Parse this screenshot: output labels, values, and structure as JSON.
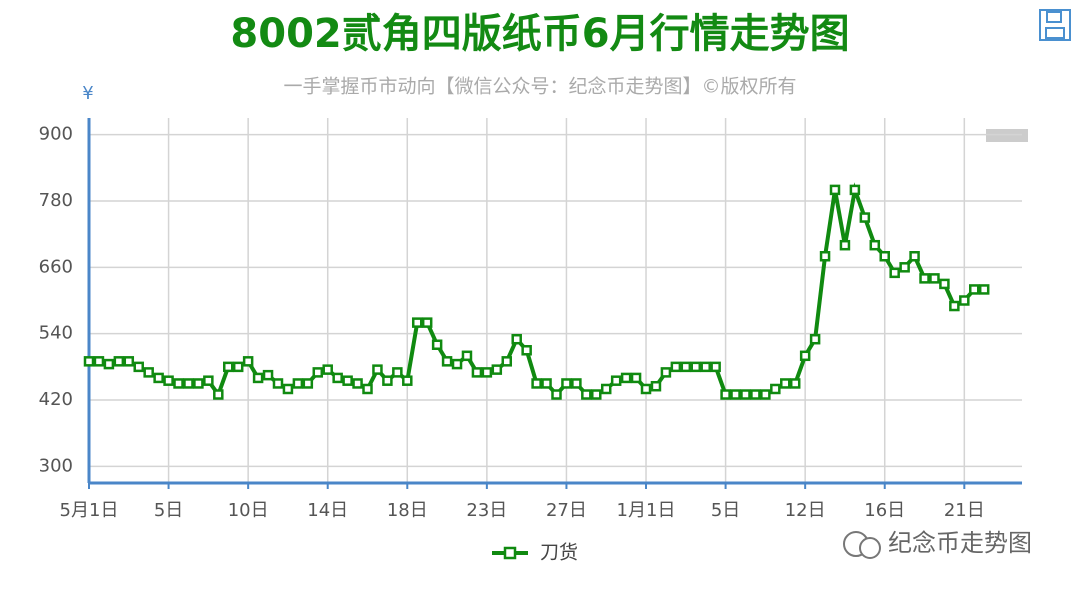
{
  "chart_data": {
    "type": "line",
    "title": "8002贰角四版纸币6月行情走势图",
    "subtitle": "一手掌握币市动向【微信公众号：纪念币走势图】©版权所有",
    "y_label": "¥",
    "watermark": "纪念币走势图",
    "categories": [
      "5月1日",
      null,
      null,
      null,
      null,
      null,
      null,
      null,
      "5日",
      null,
      null,
      null,
      null,
      null,
      null,
      null,
      "10日",
      null,
      null,
      null,
      null,
      null,
      null,
      null,
      "14日",
      null,
      null,
      null,
      null,
      null,
      null,
      null,
      "18日",
      null,
      null,
      null,
      null,
      null,
      null,
      null,
      "23日",
      null,
      null,
      null,
      null,
      null,
      null,
      null,
      "27日",
      null,
      null,
      null,
      null,
      null,
      null,
      null,
      "1月1日",
      null,
      null,
      null,
      null,
      null,
      null,
      null,
      "5日",
      null,
      null,
      null,
      null,
      null,
      null,
      null,
      "12日",
      null,
      null,
      null,
      null,
      null,
      null,
      null,
      "16日",
      null,
      null,
      null,
      null,
      null,
      null,
      null,
      "21日",
      null,
      null,
      null,
      null,
      null
    ],
    "series": [
      {
        "name": "刀货",
        "color": "#108a10",
        "values": [
          490,
          490,
          485,
          490,
          490,
          480,
          470,
          460,
          455,
          450,
          450,
          450,
          455,
          430,
          480,
          480,
          490,
          460,
          465,
          450,
          440,
          450,
          450,
          470,
          475,
          460,
          455,
          450,
          440,
          475,
          455,
          470,
          455,
          560,
          560,
          520,
          490,
          485,
          500,
          470,
          470,
          475,
          490,
          530,
          510,
          450,
          450,
          430,
          450,
          450,
          430,
          430,
          440,
          455,
          460,
          460,
          440,
          445,
          470,
          480,
          480,
          480,
          480,
          480,
          430,
          430,
          430,
          430,
          430,
          440,
          450,
          450,
          500,
          530,
          680,
          800,
          700,
          800,
          750,
          700,
          680,
          650,
          660,
          680,
          640,
          640,
          630,
          590,
          600,
          620,
          620,
          null,
          null,
          null
        ]
      }
    ],
    "ylim": [
      270,
      930
    ],
    "yticks": [
      300,
      420,
      540,
      660,
      780,
      900
    ],
    "grid": true
  }
}
